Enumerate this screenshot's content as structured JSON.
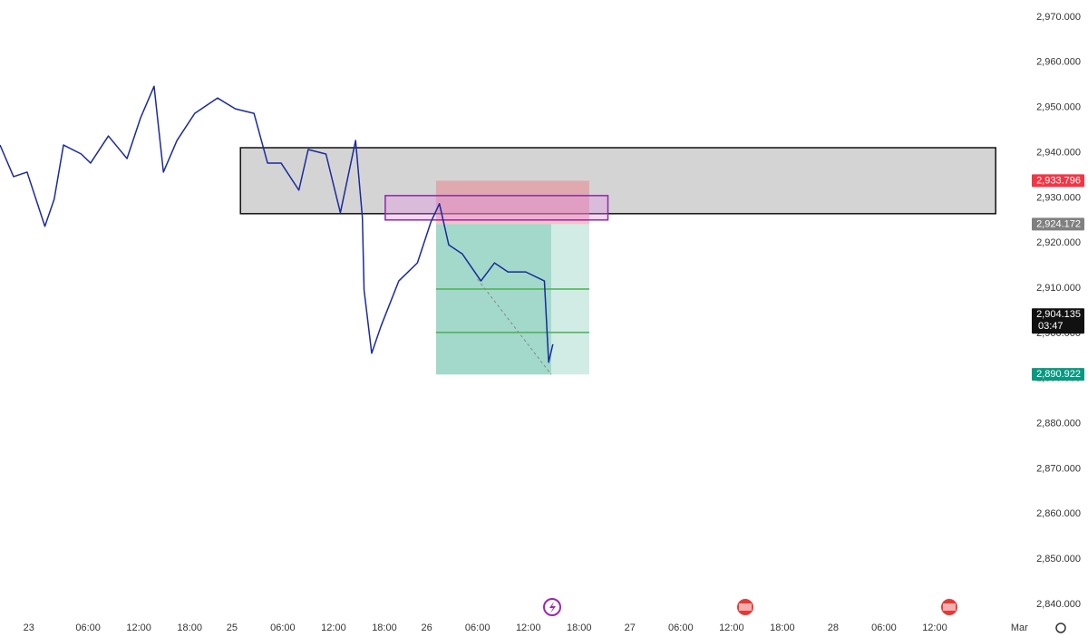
{
  "chart_data": {
    "type": "line",
    "x": [
      -3.4,
      -1.8,
      -0.2,
      1.9,
      3.0,
      4.1,
      6.2,
      7.3,
      9.4,
      11.6,
      13.2,
      14.8,
      15.9,
      17.5,
      19.6,
      22.3,
      24.4,
      26.6,
      28.2,
      29.8,
      31.9,
      33.0,
      35.1,
      36.8,
      38.6,
      39.4,
      39.6,
      40.5,
      41.6,
      43.7,
      45.9,
      47.5,
      48.5,
      49.6,
      51.2,
      53.4,
      55.0,
      56.6,
      58.7,
      60.9,
      61.4,
      61.9
    ],
    "series": [
      {
        "color": "#1a2a9c",
        "values": [
          2941.7,
          2934.7,
          2935.7,
          2923.7,
          2929.7,
          2941.7,
          2939.7,
          2937.7,
          2943.7,
          2938.7,
          2947.7,
          2954.7,
          2935.7,
          2942.7,
          2948.7,
          2952.1,
          2949.7,
          2948.7,
          2937.7,
          2937.7,
          2931.7,
          2940.7,
          2939.7,
          2926.7,
          2942.7,
          2925.7,
          2909.6,
          2895.6,
          2901.6,
          2911.6,
          2915.6,
          2924.7,
          2928.7,
          2919.6,
          2917.6,
          2911.6,
          2915.6,
          2913.6,
          2913.6,
          2911.6,
          2893.6,
          2897.6
        ]
      }
    ],
    "xlim": [
      -3.4,
      116.0
    ],
    "ylim": [
      2837.4,
      2973.8
    ],
    "grid": false,
    "xticks": [
      {
        "value": 0,
        "label": "23"
      },
      {
        "value": 7,
        "label": "06:00"
      },
      {
        "value": 13,
        "label": "12:00"
      },
      {
        "value": 19,
        "label": "18:00"
      },
      {
        "value": 24,
        "label": "25"
      },
      {
        "value": 30,
        "label": "06:00"
      },
      {
        "value": 36,
        "label": "12:00"
      },
      {
        "value": 42,
        "label": "18:00"
      },
      {
        "value": 47,
        "label": "26"
      },
      {
        "value": 53,
        "label": "06:00"
      },
      {
        "value": 59,
        "label": "12:00"
      },
      {
        "value": 65,
        "label": "18:00"
      },
      {
        "value": 71,
        "label": "27"
      },
      {
        "value": 77,
        "label": "06:00"
      },
      {
        "value": 83,
        "label": "12:00"
      },
      {
        "value": 89,
        "label": "18:00"
      },
      {
        "value": 95,
        "label": "28"
      },
      {
        "value": 101,
        "label": "06:00"
      },
      {
        "value": 107,
        "label": "12:00"
      },
      {
        "value": 117,
        "label": "Mar"
      }
    ],
    "yticks": [
      {
        "value": 2970,
        "label": "2,970.000"
      },
      {
        "value": 2960,
        "label": "2,960.000"
      },
      {
        "value": 2950,
        "label": "2,950.000"
      },
      {
        "value": 2940,
        "label": "2,940.000"
      },
      {
        "value": 2930,
        "label": "2,930.000"
      },
      {
        "value": 2920,
        "label": "2,920.000"
      },
      {
        "value": 2910,
        "label": "2,910.000"
      },
      {
        "value": 2900,
        "label": "2,900.000"
      },
      {
        "value": 2890,
        "label": "2,890.000"
      },
      {
        "value": 2880,
        "label": "2,880.000"
      },
      {
        "value": 2870,
        "label": "2,870.000"
      },
      {
        "value": 2860,
        "label": "2,860.000"
      },
      {
        "value": 2850,
        "label": "2,850.000"
      },
      {
        "value": 2840,
        "label": "2,840.000"
      }
    ],
    "zones": [
      {
        "x": [
          25.0,
          114.2
        ],
        "y": [
          2941.1,
          2926.5
        ],
        "fill": "rgba(160,160,160,0.45)",
        "stroke": "#111"
      },
      {
        "x": [
          48.1,
          66.2
        ],
        "y": [
          2933.8,
          2924.2
        ],
        "fill": "rgba(235,120,130,0.45)",
        "stroke": "none"
      },
      {
        "x": [
          48.1,
          61.7
        ],
        "y": [
          2924.2,
          2890.9
        ],
        "fill": "rgba(70,180,150,0.5)",
        "stroke": "none"
      },
      {
        "x": [
          61.7,
          66.2
        ],
        "y": [
          2924.2,
          2890.9
        ],
        "fill": "rgba(70,180,150,0.25)",
        "stroke": "none"
      },
      {
        "x": [
          42.1,
          68.4
        ],
        "y": [
          2930.5,
          2925.1
        ],
        "fill": "rgba(230,140,230,0.35)",
        "stroke": "#8a2aa0"
      }
    ],
    "levels": [
      {
        "value": 2909.8,
        "x": [
          48.1,
          66.2
        ]
      },
      {
        "value": 2900.2,
        "x": [
          48.1,
          66.2
        ]
      }
    ],
    "trend_line": {
      "x": [
        53.0,
        61.7
      ],
      "y": [
        2912.0,
        2890.9
      ]
    },
    "price_labels": [
      {
        "value": 2933.796,
        "label": "2,933.796",
        "color": "#f23645"
      },
      {
        "value": 2924.172,
        "label": "2,924.172",
        "color": "#808080"
      },
      {
        "value": 2904.135,
        "label": "2,904.135",
        "color": "#111111"
      },
      {
        "value": 2890.922,
        "label": "2,890.922",
        "color": "#089981"
      }
    ],
    "countdown": "03:47"
  }
}
